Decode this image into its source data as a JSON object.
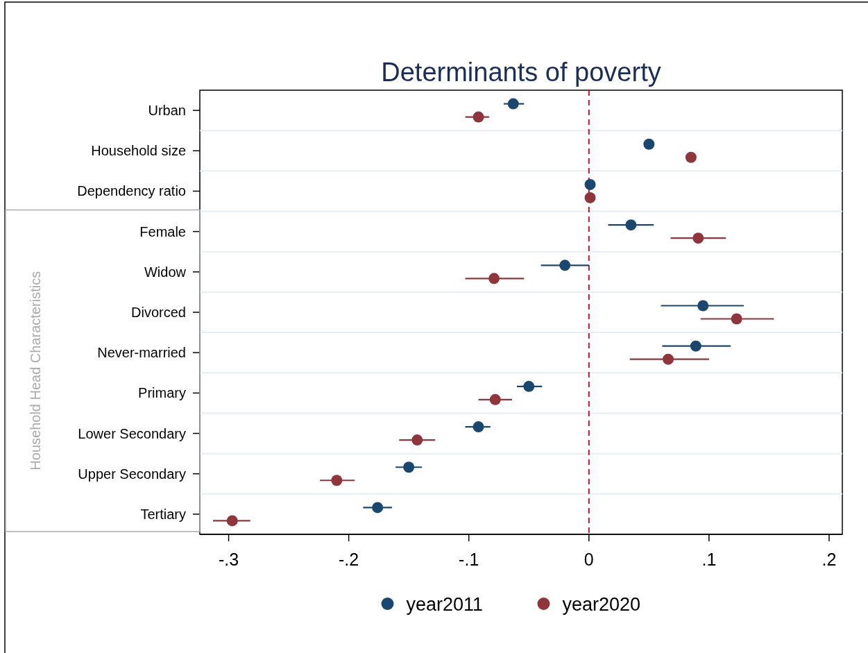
{
  "chart_data": {
    "type": "scatter",
    "orientation": "horizontal",
    "title": "Determinants of poverty",
    "categories": [
      "Urban",
      "Household size",
      "Dependency ratio",
      "Female",
      "Widow",
      "Divorced",
      "Never-married",
      "Primary",
      "Lower Secondary",
      "Upper Secondary",
      "Tertiary"
    ],
    "series": [
      {
        "name": "year2011",
        "color": "#1a476f",
        "values": [
          -0.063,
          0.05,
          0.001,
          0.035,
          -0.02,
          0.095,
          0.089,
          -0.05,
          -0.092,
          -0.15,
          -0.176
        ],
        "errors": [
          [
            -0.071,
            -0.054
          ],
          null,
          null,
          [
            0.016,
            0.054
          ],
          [
            -0.04,
            0.0
          ],
          [
            0.06,
            0.129
          ],
          [
            0.061,
            0.118
          ],
          [
            -0.06,
            -0.039
          ],
          [
            -0.103,
            -0.082
          ],
          [
            -0.161,
            -0.139
          ],
          [
            -0.188,
            -0.164
          ]
        ]
      },
      {
        "name": "year2020",
        "color": "#90353b",
        "values": [
          -0.092,
          0.085,
          0.001,
          0.091,
          -0.079,
          0.123,
          0.066,
          -0.078,
          -0.143,
          -0.21,
          -0.297
        ],
        "errors": [
          [
            -0.103,
            -0.083
          ],
          null,
          null,
          [
            0.068,
            0.114
          ],
          [
            -0.103,
            -0.054
          ],
          [
            0.093,
            0.154
          ],
          [
            0.034,
            0.1
          ],
          [
            -0.092,
            -0.064
          ],
          [
            -0.158,
            -0.128
          ],
          [
            -0.224,
            -0.195
          ],
          [
            -0.313,
            -0.282
          ]
        ]
      }
    ],
    "xlim": [
      -0.324,
      0.211
    ],
    "xticks": [
      {
        "value": -0.3,
        "label": "-.3"
      },
      {
        "value": -0.2,
        "label": "-.2"
      },
      {
        "value": -0.1,
        "label": "-.1"
      },
      0,
      {
        "value": 0.1,
        "label": ".1"
      },
      {
        "value": 0.2,
        "label": ".2"
      }
    ],
    "ref_lines": [
      {
        "axis": "x",
        "value": 0,
        "color": "#c8102e",
        "line_style": "dashed"
      }
    ],
    "annotations": [
      "Household Head Characteristics"
    ],
    "grid": "y",
    "legend": "bottom",
    "marker": "circle"
  }
}
